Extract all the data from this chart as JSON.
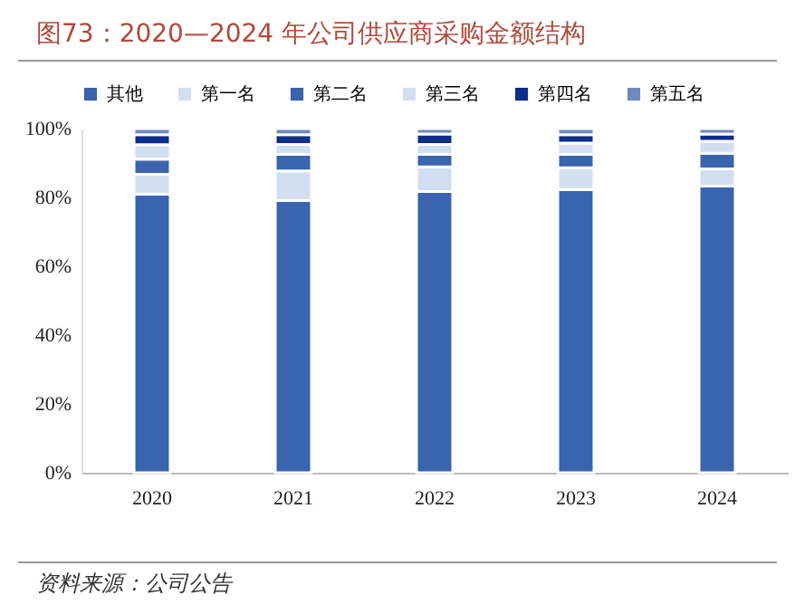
{
  "chart_data": {
    "type": "bar",
    "stacked": true,
    "title": "图73：2020—2024 年公司供应商采购金额结构",
    "annotations": [
      "资料来源：公司公告"
    ],
    "categories": [
      "2020",
      "2021",
      "2022",
      "2023",
      "2024"
    ],
    "series": [
      {
        "name": "其他",
        "color": "#3a64ad",
        "values": [
          80.9,
          79.1,
          81.7,
          82.3,
          83.3
        ]
      },
      {
        "name": "第一名",
        "color": "#d2dff0",
        "values": [
          5.8,
          8.6,
          7.2,
          6.3,
          5.0
        ]
      },
      {
        "name": "第二名",
        "color": "#3a64ad",
        "values": [
          4.4,
          4.8,
          3.6,
          3.9,
          4.5
        ]
      },
      {
        "name": "第三名",
        "color": "#d2dff0",
        "values": [
          4.2,
          2.9,
          2.9,
          3.3,
          3.5
        ]
      },
      {
        "name": "第四名",
        "color": "#0d2d8a",
        "values": [
          2.9,
          2.8,
          3.0,
          2.4,
          2.1
        ]
      },
      {
        "name": "第五名",
        "color": "#6f88c0",
        "values": [
          1.8,
          1.8,
          1.6,
          1.8,
          1.6
        ]
      }
    ],
    "ylim": [
      0,
      100
    ],
    "yticks": [
      {
        "value": 0,
        "label": "0%"
      },
      {
        "value": 20,
        "label": "20%"
      },
      {
        "value": 40,
        "label": "40%"
      },
      {
        "value": 60,
        "label": "60%"
      },
      {
        "value": 80,
        "label": "80%"
      },
      {
        "value": 100,
        "label": "100%"
      }
    ],
    "legend": "top",
    "grid": false
  }
}
